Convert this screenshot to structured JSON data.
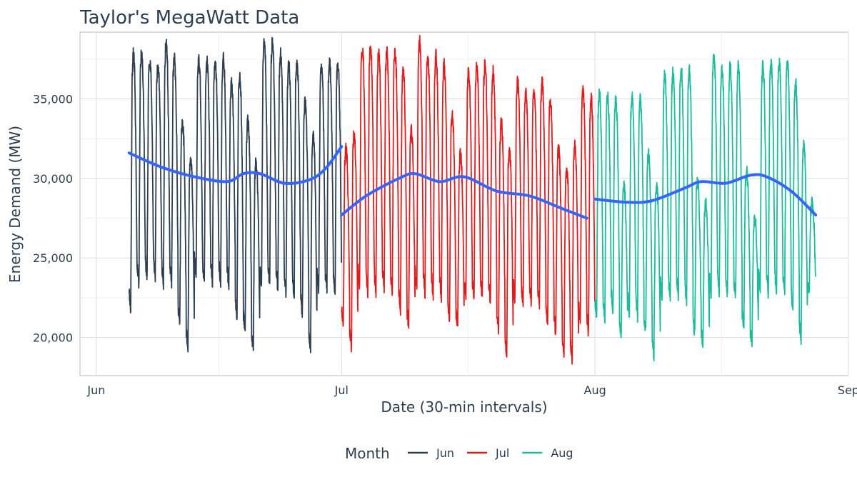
{
  "chart_data": {
    "type": "line",
    "title": "Taylor's MegaWatt Data",
    "xlabel": "Date (30-min intervals)",
    "ylabel": "Energy Demand (MW)",
    "x_ticks": [
      {
        "label": "Jun",
        "date": "2019-06-01"
      },
      {
        "label": "Jul",
        "date": "2019-07-01"
      },
      {
        "label": "Aug",
        "date": "2019-08-01"
      },
      {
        "label": "Sep",
        "date": "2019-09-01"
      }
    ],
    "y_ticks": [
      {
        "label": "20,000",
        "value": 20000
      },
      {
        "label": "25,000",
        "value": 25000
      },
      {
        "label": "30,000",
        "value": 30000
      },
      {
        "label": "35,000",
        "value": 35000
      }
    ],
    "xlim": [
      "2019-05-30",
      "2019-09-01"
    ],
    "ylim": [
      17600,
      39200
    ],
    "grid": true,
    "legend": {
      "title": "Month",
      "position": "bottom"
    },
    "series": [
      {
        "name": "Jun",
        "color": "#2c3e50",
        "start": "2019-06-05",
        "end": "2019-06-30T23:30",
        "daily_peaks": [
          37800,
          37900,
          37400,
          37100,
          38500,
          37500,
          33500,
          31300,
          37400,
          37300,
          37300,
          37600,
          35900,
          36400,
          33600,
          31100,
          38600,
          38600,
          37800,
          37100,
          37300,
          34800,
          32700,
          37200,
          37200,
          37300
        ],
        "daily_troughs": [
          21600,
          23400,
          23800,
          23800,
          23400,
          23300,
          21000,
          19300,
          23900,
          23600,
          23500,
          23500,
          23400,
          21100,
          20400,
          19300,
          23200,
          23300,
          23100,
          22800,
          22600,
          21500,
          19300,
          23000,
          23000,
          22800
        ],
        "trend": [
          {
            "x": "2019-06-05",
            "y": 31600
          },
          {
            "x": "2019-06-09",
            "y": 30700
          },
          {
            "x": "2019-06-13",
            "y": 30100
          },
          {
            "x": "2019-06-17",
            "y": 29800
          },
          {
            "x": "2019-06-19",
            "y": 30300
          },
          {
            "x": "2019-06-21",
            "y": 30300
          },
          {
            "x": "2019-06-24",
            "y": 29700
          },
          {
            "x": "2019-06-27",
            "y": 29900
          },
          {
            "x": "2019-06-29",
            "y": 30600
          },
          {
            "x": "2019-07-01",
            "y": 32000
          }
        ]
      },
      {
        "name": "Jul",
        "color": "#e31a1c",
        "start": "2019-07-01",
        "end": "2019-07-31T23:30",
        "daily_peaks": [
          31800,
          32800,
          38200,
          38300,
          37900,
          37900,
          38000,
          37000,
          33000,
          38600,
          37600,
          37800,
          37100,
          34000,
          31500,
          36800,
          37100,
          37200,
          36700,
          33500,
          31800,
          36100,
          35400,
          35600,
          36000,
          35000,
          31800,
          30500,
          32000,
          35500,
          35000
        ],
        "daily_troughs": [
          20800,
          19400,
          23200,
          22800,
          22900,
          23000,
          22800,
          21600,
          20700,
          23100,
          22800,
          22700,
          22600,
          21000,
          20700,
          22500,
          22400,
          22500,
          22300,
          20500,
          18900,
          22400,
          22200,
          22200,
          22000,
          20900,
          20300,
          19000,
          18600,
          21000,
          20300
        ],
        "trend": [
          {
            "x": "2019-07-01",
            "y": 27700
          },
          {
            "x": "2019-07-04",
            "y": 28900
          },
          {
            "x": "2019-07-08",
            "y": 30000
          },
          {
            "x": "2019-07-10",
            "y": 30300
          },
          {
            "x": "2019-07-13",
            "y": 29800
          },
          {
            "x": "2019-07-16",
            "y": 30100
          },
          {
            "x": "2019-07-20",
            "y": 29200
          },
          {
            "x": "2019-07-24",
            "y": 28900
          },
          {
            "x": "2019-07-28",
            "y": 28100
          },
          {
            "x": "2019-07-31",
            "y": 27500
          }
        ]
      },
      {
        "name": "Aug",
        "color": "#1abc9c",
        "start": "2019-08-01",
        "end": "2019-08-27T23:30",
        "daily_peaks": [
          35300,
          35200,
          34900,
          29500,
          35200,
          35000,
          31500,
          29500,
          36500,
          36600,
          36900,
          36700,
          29800,
          28400,
          37800,
          36900,
          37000,
          37000,
          30400,
          27500,
          37100,
          37200,
          37300,
          37300,
          36000,
          32000,
          28400
        ],
        "daily_troughs": [
          21300,
          21300,
          21700,
          20100,
          21500,
          21400,
          20400,
          18900,
          22400,
          22400,
          22500,
          22300,
          20300,
          19600,
          22700,
          22800,
          22600,
          22400,
          20800,
          19700,
          22900,
          22800,
          22900,
          22700,
          21700,
          19800,
          23100
        ],
        "trend": [
          {
            "x": "2019-08-01",
            "y": 28700
          },
          {
            "x": "2019-08-05",
            "y": 28500
          },
          {
            "x": "2019-08-08",
            "y": 28600
          },
          {
            "x": "2019-08-12",
            "y": 29400
          },
          {
            "x": "2019-08-14",
            "y": 29800
          },
          {
            "x": "2019-08-17",
            "y": 29700
          },
          {
            "x": "2019-08-20",
            "y": 30200
          },
          {
            "x": "2019-08-22",
            "y": 30100
          },
          {
            "x": "2019-08-25",
            "y": 29200
          },
          {
            "x": "2019-08-28",
            "y": 27700
          }
        ]
      }
    ],
    "trend_color": "#3366ff"
  }
}
